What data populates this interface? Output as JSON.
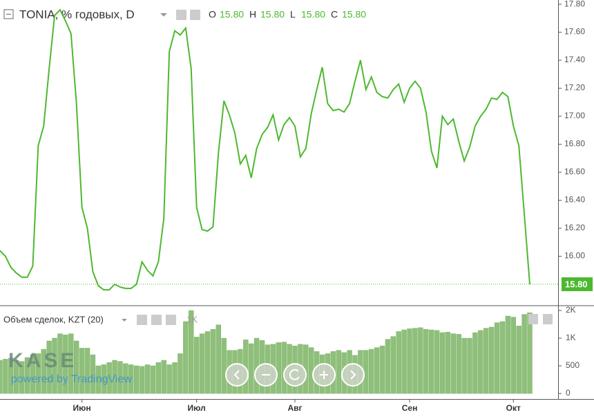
{
  "chart_data": [
    {
      "type": "line",
      "title": "TONIA, % годовых, D",
      "ohlc": [
        {
          "label": "O",
          "value": "15.80"
        },
        {
          "label": "H",
          "value": "15.80"
        },
        {
          "label": "L",
          "value": "15.80"
        },
        {
          "label": "C",
          "value": "15.80"
        }
      ],
      "categories": [
        null,
        null,
        null,
        null,
        null,
        null,
        null,
        null,
        null,
        null,
        null,
        null,
        null,
        null,
        null,
        "Июн",
        null,
        null,
        null,
        null,
        null,
        null,
        null,
        null,
        null,
        null,
        null,
        null,
        null,
        null,
        null,
        null,
        null,
        null,
        null,
        null,
        "Июл",
        null,
        null,
        null,
        null,
        null,
        null,
        null,
        null,
        null,
        null,
        null,
        null,
        null,
        null,
        null,
        null,
        null,
        "Авг",
        null,
        null,
        null,
        null,
        null,
        null,
        null,
        null,
        null,
        null,
        null,
        null,
        null,
        null,
        null,
        null,
        null,
        null,
        null,
        null,
        "Сен",
        null,
        null,
        null,
        null,
        null,
        null,
        null,
        null,
        null,
        null,
        null,
        null,
        null,
        null,
        null,
        null,
        null,
        null,
        "Окт",
        null,
        null,
        null
      ],
      "series": [
        {
          "name": "TONIA",
          "color": "#4cb82f",
          "values": [
            16.04,
            16.0,
            15.92,
            15.88,
            15.85,
            15.85,
            15.93,
            16.79,
            16.93,
            17.34,
            17.72,
            17.76,
            17.68,
            17.59,
            17.09,
            16.35,
            16.2,
            15.89,
            15.79,
            15.76,
            15.76,
            15.8,
            15.78,
            15.77,
            15.77,
            15.8,
            15.96,
            15.9,
            15.86,
            15.96,
            16.27,
            17.46,
            17.61,
            17.58,
            17.63,
            17.34,
            16.35,
            16.19,
            16.18,
            16.21,
            16.74,
            17.11,
            17.01,
            16.88,
            16.66,
            16.72,
            16.56,
            16.77,
            16.87,
            16.92,
            17.01,
            16.83,
            16.94,
            16.99,
            16.93,
            16.71,
            16.77,
            17.02,
            17.19,
            17.35,
            17.09,
            17.04,
            17.05,
            17.03,
            17.09,
            17.25,
            17.4,
            17.19,
            17.28,
            17.17,
            17.14,
            17.13,
            17.19,
            17.23,
            17.1,
            17.2,
            17.25,
            17.2,
            17.03,
            16.75,
            16.63,
            17.0,
            16.94,
            16.98,
            16.82,
            16.68,
            16.78,
            16.93,
            17.0,
            17.05,
            17.13,
            17.12,
            17.17,
            17.14,
            16.93,
            16.79,
            16.3,
            15.8
          ]
        }
      ],
      "last_value": {
        "value": 15.8,
        "label": "15.80"
      },
      "ylim": [
        15.657,
        17.83
      ],
      "yticks": [
        {
          "value": 16.0,
          "label": "16.00"
        },
        {
          "value": 16.2,
          "label": "16.20"
        },
        {
          "value": 16.4,
          "label": "16.40"
        },
        {
          "value": 16.6,
          "label": "16.60"
        },
        {
          "value": 16.8,
          "label": "16.80"
        },
        {
          "value": 17.0,
          "label": "17.00"
        },
        {
          "value": 17.2,
          "label": "17.20"
        },
        {
          "value": 17.4,
          "label": "17.40"
        },
        {
          "value": 17.6,
          "label": "17.60"
        },
        {
          "value": 17.8,
          "label": "17.80"
        }
      ],
      "watermark": {
        "logo": "KASE",
        "tagline": "powered by TradingView"
      }
    },
    {
      "type": "bar",
      "title": "Объем сделок, KZT (20)",
      "current_label": "1K",
      "series": [
        {
          "name": "Объем сделок",
          "color": "#8fc07b",
          "values": [
            600,
            620,
            640,
            600,
            580,
            650,
            700,
            720,
            800,
            950,
            1000,
            1080,
            1060,
            1080,
            950,
            820,
            820,
            700,
            500,
            520,
            560,
            600,
            580,
            540,
            520,
            500,
            490,
            520,
            500,
            560,
            600,
            520,
            560,
            720,
            1300,
            1500,
            1020,
            1080,
            1120,
            1160,
            1240,
            1000,
            780,
            780,
            800,
            970,
            900,
            1000,
            960,
            880,
            890,
            920,
            930,
            890,
            860,
            890,
            880,
            830,
            760,
            700,
            720,
            760,
            780,
            740,
            780,
            690,
            780,
            780,
            800,
            830,
            860,
            980,
            1030,
            1120,
            1150,
            1170,
            1180,
            1190,
            1160,
            1150,
            1140,
            1100,
            1110,
            1080,
            1070,
            1000,
            1000,
            1100,
            1140,
            1180,
            1200,
            1280,
            1300,
            1400,
            1380,
            1220,
            1430,
            1460
          ]
        }
      ],
      "ylim": [
        0,
        1575
      ],
      "yticks": [
        0,
        500,
        {
          "value": 1000,
          "label": "1K"
        },
        {
          "value": 1500,
          "label": "2K"
        }
      ]
    }
  ]
}
